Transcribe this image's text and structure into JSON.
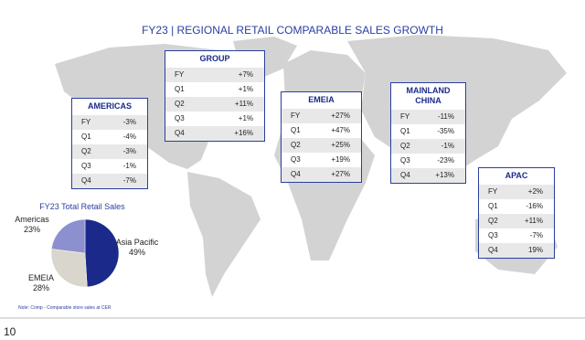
{
  "title": "FY23 | REGIONAL RETAIL COMPARABLE SALES GROWTH",
  "tables": [
    {
      "region": "AMERICAS",
      "rows": [
        [
          "FY",
          "-3%"
        ],
        [
          "Q1",
          "-4%"
        ],
        [
          "Q2",
          "-3%"
        ],
        [
          "Q3",
          "-1%"
        ],
        [
          "Q4",
          "-7%"
        ]
      ]
    },
    {
      "region": "GROUP",
      "rows": [
        [
          "FY",
          "+7%"
        ],
        [
          "Q1",
          "+1%"
        ],
        [
          "Q2",
          "+11%"
        ],
        [
          "Q3",
          "+1%"
        ],
        [
          "Q4",
          "+16%"
        ]
      ]
    },
    {
      "region": "EMEIA",
      "rows": [
        [
          "FY",
          "+27%"
        ],
        [
          "Q1",
          "+47%"
        ],
        [
          "Q2",
          "+25%"
        ],
        [
          "Q3",
          "+19%"
        ],
        [
          "Q4",
          "+27%"
        ]
      ]
    },
    {
      "region": "MAINLAND CHINA",
      "rows": [
        [
          "FY",
          "-11%"
        ],
        [
          "Q1",
          "-35%"
        ],
        [
          "Q2",
          "-1%"
        ],
        [
          "Q3",
          "-23%"
        ],
        [
          "Q4",
          "+13%"
        ]
      ]
    },
    {
      "region": "APAC",
      "rows": [
        [
          "FY",
          "+2%"
        ],
        [
          "Q1",
          "-16%"
        ],
        [
          "Q2",
          "+11%"
        ],
        [
          "Q3",
          "-7%"
        ],
        [
          "Q4",
          "19%"
        ]
      ]
    }
  ],
  "chart_data": {
    "type": "pie",
    "title": "FY23 Total Retail Sales",
    "categories": [
      "Asia Pacific",
      "EMEIA",
      "Americas"
    ],
    "values": [
      49,
      28,
      23
    ],
    "value_labels": [
      "49%",
      "28%",
      "23%"
    ],
    "colors": [
      "#1b2a8a",
      "#d9d7cd",
      "#8c90cf"
    ]
  },
  "note": "Note: Comp - Comparable store sales at CER",
  "page_number": "10"
}
